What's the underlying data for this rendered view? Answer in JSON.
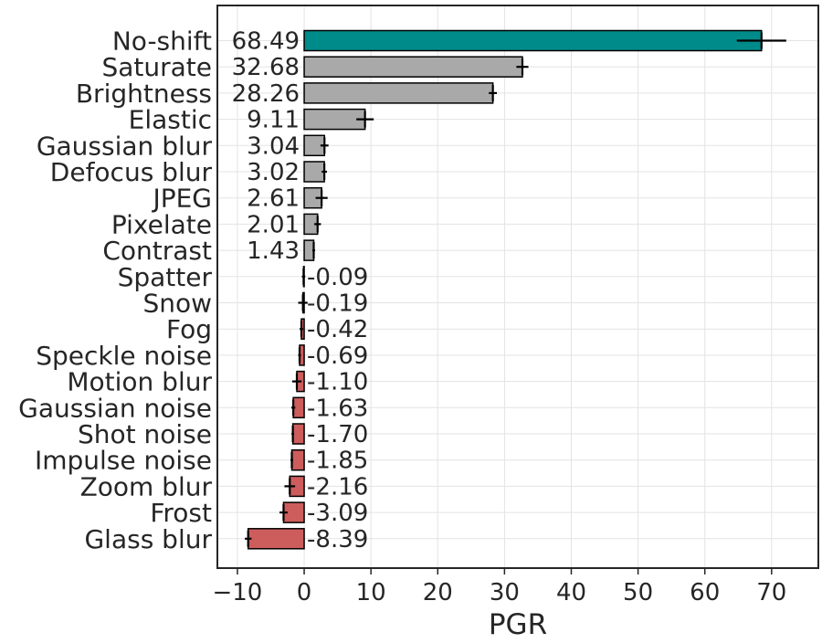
{
  "chart_data": {
    "type": "bar",
    "orientation": "horizontal",
    "xlabel": "PGR",
    "xlim": [
      -13,
      77
    ],
    "xticks": [
      -10,
      0,
      10,
      20,
      30,
      40,
      50,
      60,
      70
    ],
    "xtick_labels": [
      "−10",
      "0",
      "10",
      "20",
      "30",
      "40",
      "50",
      "60",
      "70"
    ],
    "grid": true,
    "colors": {
      "highlight": "#008b8b",
      "positive": "#a9a9a9",
      "negative": "#cd5c5c",
      "error": "#000000"
    },
    "categories": [
      "No-shift",
      "Saturate",
      "Brightness",
      "Elastic",
      "Gaussian blur",
      "Defocus blur",
      "JPEG",
      "Pixelate",
      "Contrast",
      "Spatter",
      "Snow",
      "Fog",
      "Speckle noise",
      "Motion blur",
      "Gaussian noise",
      "Shot noise",
      "Impulse noise",
      "Zoom blur",
      "Frost",
      "Glass blur"
    ],
    "values": [
      68.49,
      32.68,
      28.26,
      9.11,
      3.04,
      3.02,
      2.61,
      2.01,
      1.43,
      -0.09,
      -0.19,
      -0.42,
      -0.69,
      -1.1,
      -1.63,
      -1.7,
      -1.85,
      -2.16,
      -3.09,
      -8.39
    ],
    "value_labels": [
      "68.49",
      "32.68",
      "28.26",
      "9.11",
      "3.04",
      "3.02",
      "2.61",
      "2.01",
      "1.43",
      "-0.09",
      "-0.19",
      "-0.42",
      "-0.69",
      "-1.10",
      "-1.63",
      "-1.70",
      "-1.85",
      "-2.16",
      "-3.09",
      "-8.39"
    ],
    "errors": [
      3.7,
      0.9,
      0.6,
      1.3,
      0.6,
      0.4,
      0.9,
      0.5,
      0.2,
      0.25,
      0.7,
      0.25,
      0.2,
      0.7,
      0.3,
      0.2,
      0.2,
      0.8,
      0.6,
      0.5
    ]
  }
}
